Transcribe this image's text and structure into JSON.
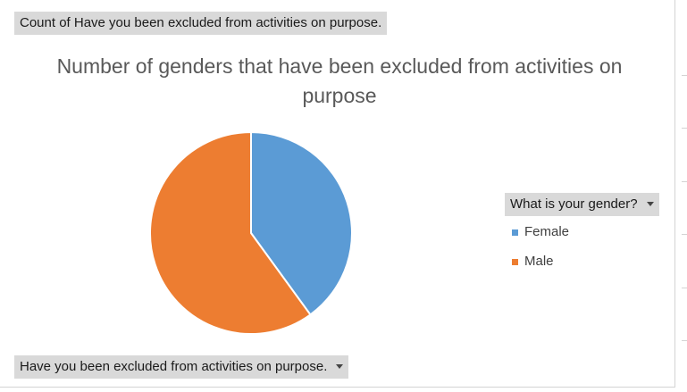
{
  "pivot": {
    "value_field_label": "Count of Have you been excluded from activities on purpose.",
    "axis_field_label": "Have you been excluded from activities on purpose.",
    "legend_field_label": "What is your gender?",
    "dropdown_icon": "chevron-down-icon"
  },
  "chart_data": {
    "type": "pie",
    "title": "Number of genders that have been excluded from activities on purpose",
    "categories": [
      "Female",
      "Male"
    ],
    "values": [
      40,
      60
    ],
    "colors": [
      "#5b9bd5",
      "#ed7d31"
    ],
    "legend_position": "right",
    "start_angle": "12 o'clock",
    "direction": "clockwise"
  }
}
